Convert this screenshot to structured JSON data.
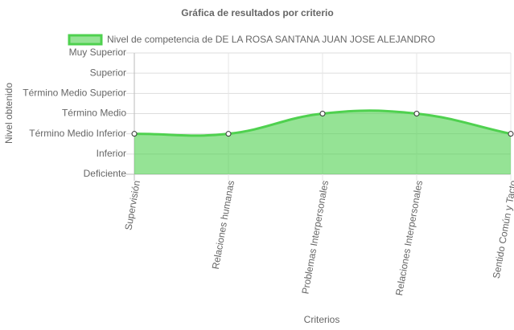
{
  "chart_data": {
    "type": "line",
    "title": "Gráfica de resultados por criterio",
    "x_label": "Criterios",
    "y_label": "Nivel obtenido",
    "categories": [
      "Supervisión",
      "Relaciones humanas",
      "Problemas Interpersonales",
      "Relaciones Interpersonales",
      "Sentido Común y Tacto"
    ],
    "series": [
      {
        "name": "Nivel de competencia de DE LA ROSA SANTANA JUAN JOSE ALEJANDRO",
        "color": "#4fd14f",
        "values": [
          2,
          2,
          3,
          3,
          2
        ]
      }
    ],
    "ylim": [
      0,
      6
    ],
    "yticks": [
      {
        "value": 0,
        "label": "Deficiente"
      },
      {
        "value": 1,
        "label": "Inferior"
      },
      {
        "value": 2,
        "label": "Término Medio Inferior"
      },
      {
        "value": 3,
        "label": "Término Medio"
      },
      {
        "value": 4,
        "label": "Término Medio Superior"
      },
      {
        "value": 5,
        "label": "Superior"
      },
      {
        "value": 6,
        "label": "Muy Superior"
      }
    ],
    "grid": true,
    "fill": true,
    "smooth": true,
    "legend": "top"
  }
}
